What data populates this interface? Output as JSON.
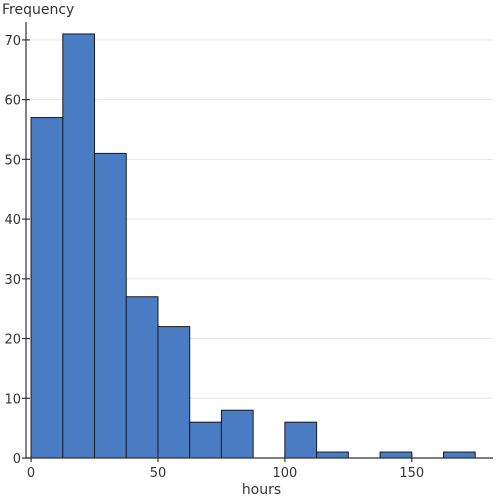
{
  "chart_data": {
    "type": "bar",
    "subtype": "histogram",
    "xlabel": "hours",
    "ylabel": "Frequency",
    "bins": [
      {
        "start": 0,
        "end": 12.5,
        "count": 57
      },
      {
        "start": 12.5,
        "end": 25,
        "count": 71
      },
      {
        "start": 25,
        "end": 37.5,
        "count": 51
      },
      {
        "start": 37.5,
        "end": 50,
        "count": 27
      },
      {
        "start": 50,
        "end": 62.5,
        "count": 22
      },
      {
        "start": 62.5,
        "end": 75,
        "count": 6
      },
      {
        "start": 75,
        "end": 87.5,
        "count": 8
      },
      {
        "start": 87.5,
        "end": 100,
        "count": 0
      },
      {
        "start": 100,
        "end": 112.5,
        "count": 6
      },
      {
        "start": 112.5,
        "end": 125,
        "count": 1
      },
      {
        "start": 125,
        "end": 137.5,
        "count": 0
      },
      {
        "start": 137.5,
        "end": 150,
        "count": 1
      },
      {
        "start": 150,
        "end": 162.5,
        "count": 0
      },
      {
        "start": 162.5,
        "end": 175,
        "count": 1
      }
    ],
    "xlim": [
      -2,
      182
    ],
    "ylim": [
      0,
      73
    ],
    "xticks": [
      0,
      50,
      100,
      150
    ],
    "yticks": [
      0,
      10,
      20,
      30,
      40,
      50,
      60,
      70
    ],
    "grid": "horizontal",
    "bar_color": "#4a7cc4"
  }
}
